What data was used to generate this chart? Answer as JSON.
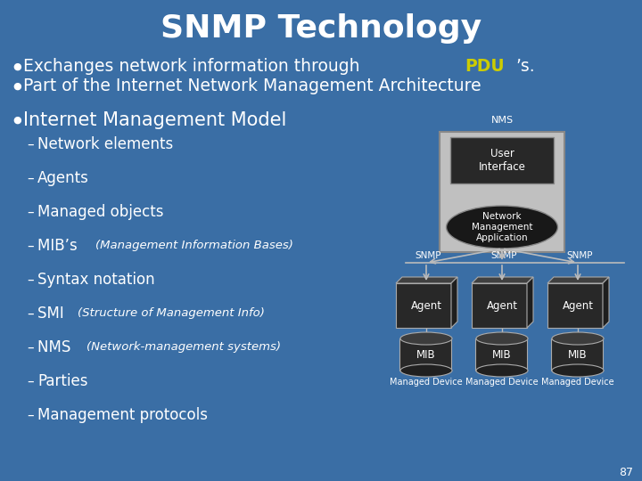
{
  "bg_color": "#3a6ea5",
  "title": "SNMP Technology",
  "title_color": "#ffffff",
  "title_fontsize": 26,
  "bullet_color": "#ffffff",
  "bullet_fontsize": 13.5,
  "bullet1_pre": "Exchanges network information through ",
  "bullet1_highlight": "PDU",
  "bullet1_post": "’s.",
  "highlight_color": "#cccc00",
  "bullet2": "Part of the Internet Network Management Architecture",
  "bullet3": "Internet Management Model",
  "subitems": [
    "Network elements",
    "Agents",
    "Managed objects",
    "MIB’s ",
    "Syntax notation",
    "SMI ",
    "NMS ",
    "Parties",
    "Management protocols"
  ],
  "subitems_italic": [
    "",
    "",
    "",
    "(Management Information Bases)",
    "",
    "(Structure of Management Info)",
    "(Network-management systems)",
    "",
    ""
  ],
  "page_num": "87",
  "nms_box_color": "#c0c0c0",
  "dark_box_color": "#282828",
  "dark_box_text": "#ffffff",
  "ellipse_color": "#181818",
  "line_color": "#bbbbbb",
  "arrow_color": "#bbbbbb"
}
